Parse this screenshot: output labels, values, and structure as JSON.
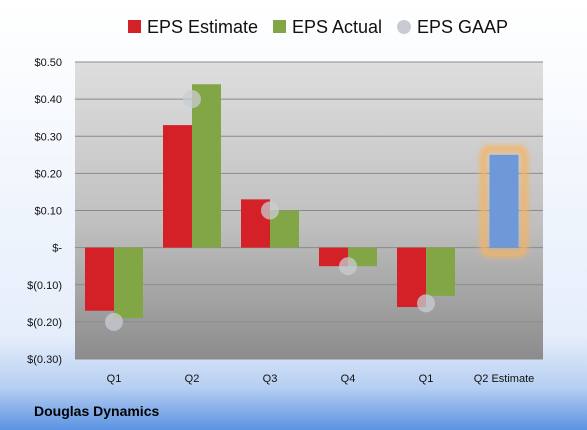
{
  "company": "Douglas Dynamics",
  "colors": {
    "estimate": "#d42027",
    "actual": "#82a645",
    "gaap": "#c8ccd2",
    "future_estimate": "#6f98d8",
    "future_glow": "#f6b361"
  },
  "chart_data": {
    "type": "bar",
    "title": "",
    "xlabel": "",
    "ylabel": "",
    "ylim": [
      -0.3,
      0.5
    ],
    "grid": true,
    "legend_position": "top",
    "y_ticks": [
      {
        "value": 0.5,
        "label": "$0.50"
      },
      {
        "value": 0.4,
        "label": "$0.40"
      },
      {
        "value": 0.3,
        "label": "$0.30"
      },
      {
        "value": 0.2,
        "label": "$0.20"
      },
      {
        "value": 0.1,
        "label": "$0.10"
      },
      {
        "value": 0.0,
        "label": "$-"
      },
      {
        "value": -0.1,
        "label": "$(0.10)"
      },
      {
        "value": -0.2,
        "label": "$(0.20)"
      },
      {
        "value": -0.3,
        "label": "$(0.30)"
      }
    ],
    "categories": [
      "Q1",
      "Q2",
      "Q3",
      "Q4",
      "Q1",
      "Q2 Estimate"
    ],
    "series": [
      {
        "name": "EPS Estimate",
        "values": [
          -0.17,
          0.33,
          0.13,
          -0.05,
          -0.16,
          0.25
        ]
      },
      {
        "name": "EPS Actual",
        "values": [
          -0.19,
          0.44,
          0.1,
          -0.05,
          -0.13,
          null
        ]
      },
      {
        "name": "EPS GAAP",
        "values": [
          -0.2,
          0.4,
          0.1,
          -0.05,
          -0.15,
          null
        ]
      }
    ]
  }
}
